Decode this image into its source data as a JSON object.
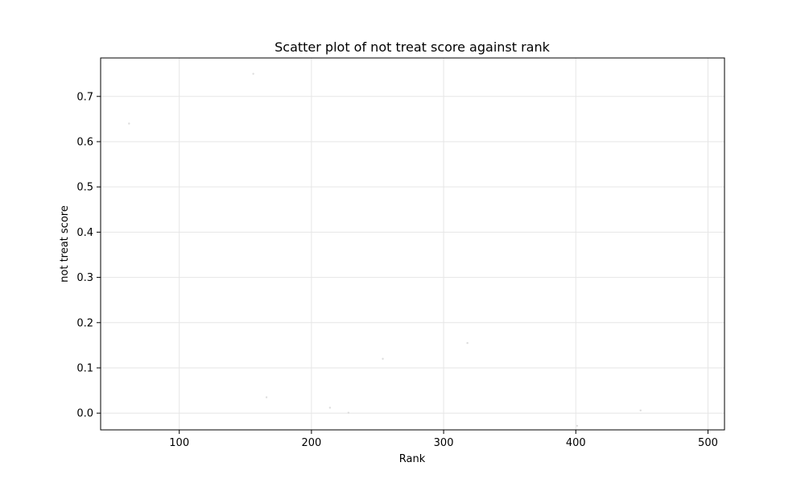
{
  "chart_data": {
    "type": "scatter",
    "title": "Scatter plot of not treat score against rank",
    "xlabel": "Rank",
    "ylabel": "not treat score",
    "xlim": [
      40.5,
      512.5
    ],
    "ylim": [
      -0.037,
      0.785
    ],
    "xticks": [
      100,
      200,
      300,
      400,
      500
    ],
    "yticks": [
      0.0,
      0.1,
      0.2,
      0.3,
      0.4,
      0.5,
      0.6,
      0.7
    ],
    "ytick_labels": [
      "0.0",
      "0.1",
      "0.2",
      "0.3",
      "0.4",
      "0.5",
      "0.6",
      "0.7"
    ],
    "grid": true,
    "point_color": "#d9d9d9",
    "points": [
      {
        "x": 62,
        "y": 0.64
      },
      {
        "x": 156,
        "y": 0.75
      },
      {
        "x": 166,
        "y": 0.035
      },
      {
        "x": 214,
        "y": 0.012
      },
      {
        "x": 228,
        "y": 0.001
      },
      {
        "x": 254,
        "y": 0.12
      },
      {
        "x": 318,
        "y": 0.155
      },
      {
        "x": 401,
        "y": -0.028
      },
      {
        "x": 449,
        "y": 0.006
      }
    ]
  }
}
